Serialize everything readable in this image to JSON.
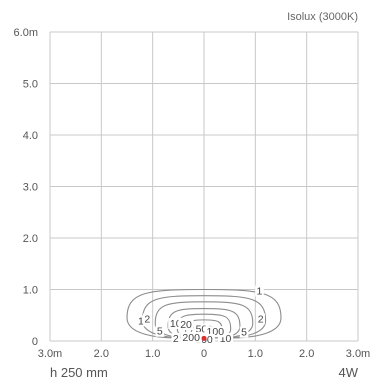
{
  "chart_data": {
    "type": "contour",
    "title": "Isolux (3000K)",
    "y_ticks": [
      "6.0m",
      "5.0",
      "4.0",
      "3.0",
      "2.0",
      "1.0",
      "0"
    ],
    "x_ticks": [
      "3.0m",
      "2.0",
      "1.0",
      "0",
      "1.0",
      "2.0",
      "3.0m"
    ],
    "xlim": [
      -3,
      3
    ],
    "ylim": [
      0,
      6
    ],
    "grid": true,
    "source_marker_color": "#d93030",
    "contours": [
      {
        "level": 1,
        "labels": [
          "1",
          "1"
        ],
        "halfwidth": 1.5,
        "top": 1.0,
        "bottom_y": 0.06,
        "bottom_halfwidth": 0.55
      },
      {
        "level": 2,
        "labels": [
          "2",
          "2",
          "2"
        ],
        "halfwidth": 1.2,
        "top": 0.88,
        "bottom_y": 0.06,
        "bottom_halfwidth": 0.4
      },
      {
        "level": 5,
        "labels": [
          "5",
          "5"
        ],
        "halfwidth": 0.95,
        "top": 0.76,
        "bottom_y": 0.06,
        "bottom_halfwidth": 0.3
      },
      {
        "level": 10,
        "labels": [
          "10",
          "10"
        ],
        "halfwidth": 0.7,
        "top": 0.63,
        "bottom_y": 0.06,
        "bottom_halfwidth": 0.22
      },
      {
        "level": 20,
        "labels": [
          "20"
        ],
        "halfwidth": 0.52,
        "top": 0.52,
        "bottom_y": 0.06,
        "bottom_halfwidth": 0.16
      },
      {
        "level": 50,
        "labels": [
          "50"
        ],
        "halfwidth": 0.36,
        "top": 0.41,
        "bottom_y": 0.06,
        "bottom_halfwidth": 0.12
      },
      {
        "level": 100,
        "labels": [
          "100",
          "100"
        ],
        "halfwidth": 0.25,
        "top": 0.29,
        "bottom_y": 0.06,
        "bottom_halfwidth": 0.09
      },
      {
        "level": 200,
        "labels": [
          "200"
        ],
        "halfwidth": 0.16,
        "top": 0.18,
        "bottom_y": 0.06,
        "bottom_halfwidth": 0.06
      }
    ]
  },
  "footer": {
    "mount_height": "h 250 mm",
    "power": "4W"
  }
}
